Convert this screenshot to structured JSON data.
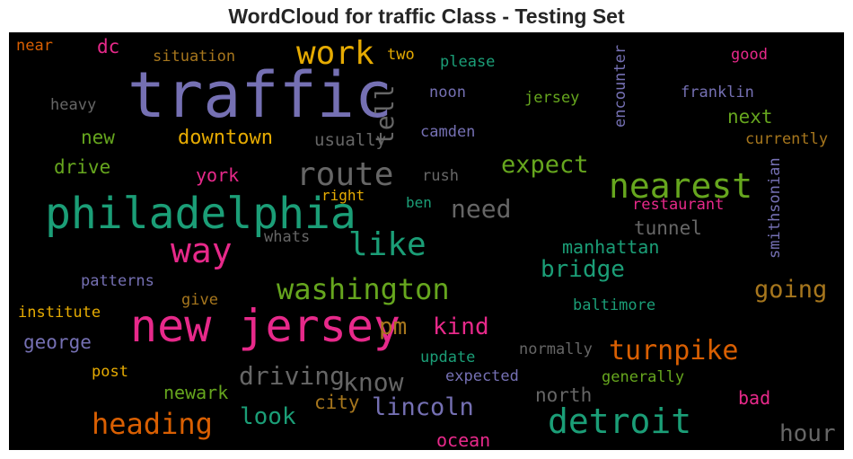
{
  "chart_data": {
    "type": "wordcloud",
    "title": "WordCloud for traffic Class - Testing Set",
    "background": "#000000",
    "palette": {
      "green": "#1b9e77",
      "orange": "#d95f02",
      "purple": "#7570b3",
      "pink": "#e7298a",
      "lime": "#66a61e",
      "yellow": "#e6ab02",
      "brown": "#a6761d",
      "grey": "#666666"
    },
    "words": [
      {
        "text": "traffic",
        "color": "purple"
      },
      {
        "text": "new jersey",
        "color": "pink"
      },
      {
        "text": "philadelphia",
        "color": "green"
      },
      {
        "text": "way",
        "color": "pink"
      },
      {
        "text": "work",
        "color": "yellow"
      },
      {
        "text": "route",
        "color": "grey"
      },
      {
        "text": "nearest",
        "color": "lime"
      },
      {
        "text": "detroit",
        "color": "green"
      },
      {
        "text": "like",
        "color": "green"
      },
      {
        "text": "washington",
        "color": "lime"
      },
      {
        "text": "heading",
        "color": "orange"
      },
      {
        "text": "turnpike",
        "color": "orange"
      },
      {
        "text": "driving",
        "color": "grey"
      },
      {
        "text": "know",
        "color": "grey"
      },
      {
        "text": "tell",
        "color": "grey"
      },
      {
        "text": "expect",
        "color": "lime"
      },
      {
        "text": "going",
        "color": "brown"
      },
      {
        "text": "need",
        "color": "grey"
      },
      {
        "text": "bridge",
        "color": "green"
      },
      {
        "text": "lincoln",
        "color": "purple"
      },
      {
        "text": "look",
        "color": "green"
      },
      {
        "text": "pm",
        "color": "brown"
      },
      {
        "text": "kind",
        "color": "pink"
      },
      {
        "text": "hour",
        "color": "grey"
      },
      {
        "text": "downtown",
        "color": "yellow"
      },
      {
        "text": "manhattan",
        "color": "green"
      },
      {
        "text": "tunnel",
        "color": "grey"
      },
      {
        "text": "george",
        "color": "purple"
      },
      {
        "text": "north",
        "color": "grey"
      },
      {
        "text": "drive",
        "color": "lime"
      },
      {
        "text": "new",
        "color": "lime"
      },
      {
        "text": "next",
        "color": "lime"
      },
      {
        "text": "city",
        "color": "brown"
      },
      {
        "text": "ocean",
        "color": "pink"
      },
      {
        "text": "newark",
        "color": "lime"
      },
      {
        "text": "bad",
        "color": "pink"
      },
      {
        "text": "york",
        "color": "pink"
      },
      {
        "text": "dc",
        "color": "pink"
      },
      {
        "text": "usually",
        "color": "grey"
      },
      {
        "text": "encounter",
        "color": "purple"
      },
      {
        "text": "smithsonian",
        "color": "purple"
      },
      {
        "text": "franklin",
        "color": "purple"
      },
      {
        "text": "restaurant",
        "color": "pink"
      },
      {
        "text": "jersey",
        "color": "lime"
      },
      {
        "text": "noon",
        "color": "purple"
      },
      {
        "text": "camden",
        "color": "purple"
      },
      {
        "text": "heavy",
        "color": "grey"
      },
      {
        "text": "situation",
        "color": "brown"
      },
      {
        "text": "please",
        "color": "green"
      },
      {
        "text": "two",
        "color": "yellow"
      },
      {
        "text": "good",
        "color": "pink"
      },
      {
        "text": "near",
        "color": "orange"
      },
      {
        "text": "currently",
        "color": "brown"
      },
      {
        "text": "rush",
        "color": "grey"
      },
      {
        "text": "right",
        "color": "yellow"
      },
      {
        "text": "ben",
        "color": "green"
      },
      {
        "text": "whats",
        "color": "grey"
      },
      {
        "text": "patterns",
        "color": "purple"
      },
      {
        "text": "give",
        "color": "brown"
      },
      {
        "text": "institute",
        "color": "yellow"
      },
      {
        "text": "baltimore",
        "color": "green"
      },
      {
        "text": "update",
        "color": "green"
      },
      {
        "text": "normally",
        "color": "grey"
      },
      {
        "text": "expected",
        "color": "purple"
      },
      {
        "text": "generally",
        "color": "lime"
      },
      {
        "text": "post",
        "color": "yellow"
      }
    ]
  }
}
